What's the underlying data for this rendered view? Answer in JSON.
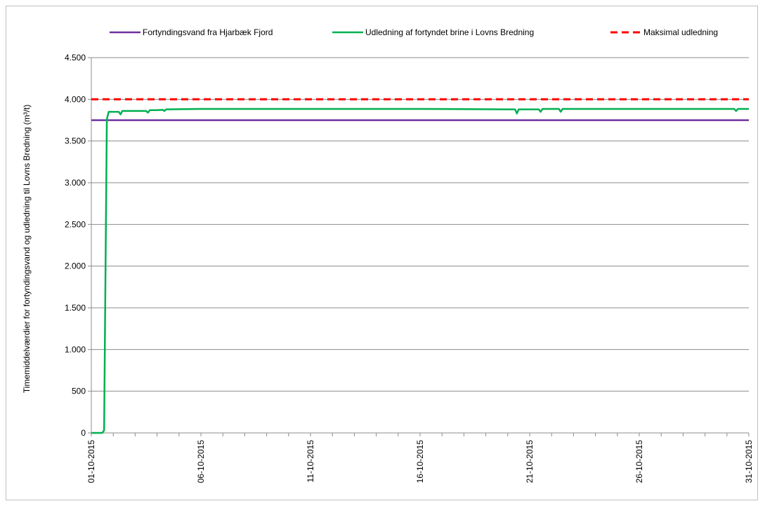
{
  "chart_data": {
    "type": "line",
    "ylabel": "Timemiddelværdier for fortyndingsvand og udledning til Lovns Bredning (m³/t)",
    "xlabel": "",
    "ylim": [
      0,
      4500
    ],
    "yticks": [
      0,
      500,
      1000,
      1500,
      2000,
      2500,
      3000,
      3500,
      4000,
      4500
    ],
    "ytick_labels": [
      "0",
      "500",
      "1.000",
      "1.500",
      "2.000",
      "2.500",
      "3.000",
      "3.500",
      "4.000",
      "4.500"
    ],
    "xlim": [
      "2015-10-01",
      "2015-10-31"
    ],
    "xticks": [
      "2015-10-01",
      "2015-10-06",
      "2015-10-11",
      "2015-10-16",
      "2015-10-21",
      "2015-10-26",
      "2015-10-31"
    ],
    "xtick_labels": [
      "01-10-2015",
      "06-10-2015",
      "11-10-2015",
      "16-10-2015",
      "21-10-2015",
      "26-10-2015",
      "31-10-2015"
    ],
    "grid": "horizontal",
    "legend_position": "top",
    "series": [
      {
        "name": "Fortyndingsvand fra Hjarbæk Fjord",
        "color": "#7030a0",
        "style": "solid",
        "x": [
          "2015-10-01 00:00",
          "2015-10-01 12:00",
          "2015-10-31 00:00"
        ],
        "values": [
          3750,
          3750,
          3750
        ]
      },
      {
        "name": "Udledning af fortyndet brine i Lovns Bredning",
        "color": "#00b050",
        "style": "solid",
        "x": [
          "2015-10-01 00:00",
          "2015-10-01 12:00",
          "2015-10-01 14:00",
          "2015-10-01 17:00",
          "2015-10-01 19:00",
          "2015-10-02 00:00",
          "2015-10-02 06:00",
          "2015-10-02 08:00",
          "2015-10-02 10:00",
          "2015-10-03 00:00",
          "2015-10-03 12:00",
          "2015-10-03 14:00",
          "2015-10-03 16:00",
          "2015-10-04 00:00",
          "2015-10-04 06:00",
          "2015-10-04 08:00",
          "2015-10-04 10:00",
          "2015-10-06 00:00",
          "2015-10-11 00:00",
          "2015-10-16 00:00",
          "2015-10-20 00:00",
          "2015-10-20 08:00",
          "2015-10-20 10:00",
          "2015-10-20 12:00",
          "2015-10-21 00:00",
          "2015-10-21 10:00",
          "2015-10-21 12:00",
          "2015-10-21 14:00",
          "2015-10-22 00:00",
          "2015-10-22 08:00",
          "2015-10-22 10:00",
          "2015-10-22 12:00",
          "2015-10-24 00:00",
          "2015-10-26 00:00",
          "2015-10-28 00:00",
          "2015-10-30 00:00",
          "2015-10-30 08:00",
          "2015-10-30 10:00",
          "2015-10-30 12:00",
          "2015-10-31 00:00"
        ],
        "values": [
          0,
          0,
          30,
          3760,
          3850,
          3850,
          3850,
          3820,
          3860,
          3860,
          3860,
          3840,
          3870,
          3870,
          3875,
          3860,
          3880,
          3885,
          3885,
          3885,
          3880,
          3880,
          3830,
          3880,
          3880,
          3880,
          3850,
          3885,
          3885,
          3885,
          3850,
          3885,
          3885,
          3885,
          3885,
          3885,
          3885,
          3860,
          3885,
          3885
        ]
      },
      {
        "name": "Maksimal udledning",
        "color": "#ff0000",
        "style": "dashed",
        "x": [
          "2015-10-01 00:00",
          "2015-10-31 00:00"
        ],
        "values": [
          4000,
          4000
        ]
      }
    ]
  }
}
